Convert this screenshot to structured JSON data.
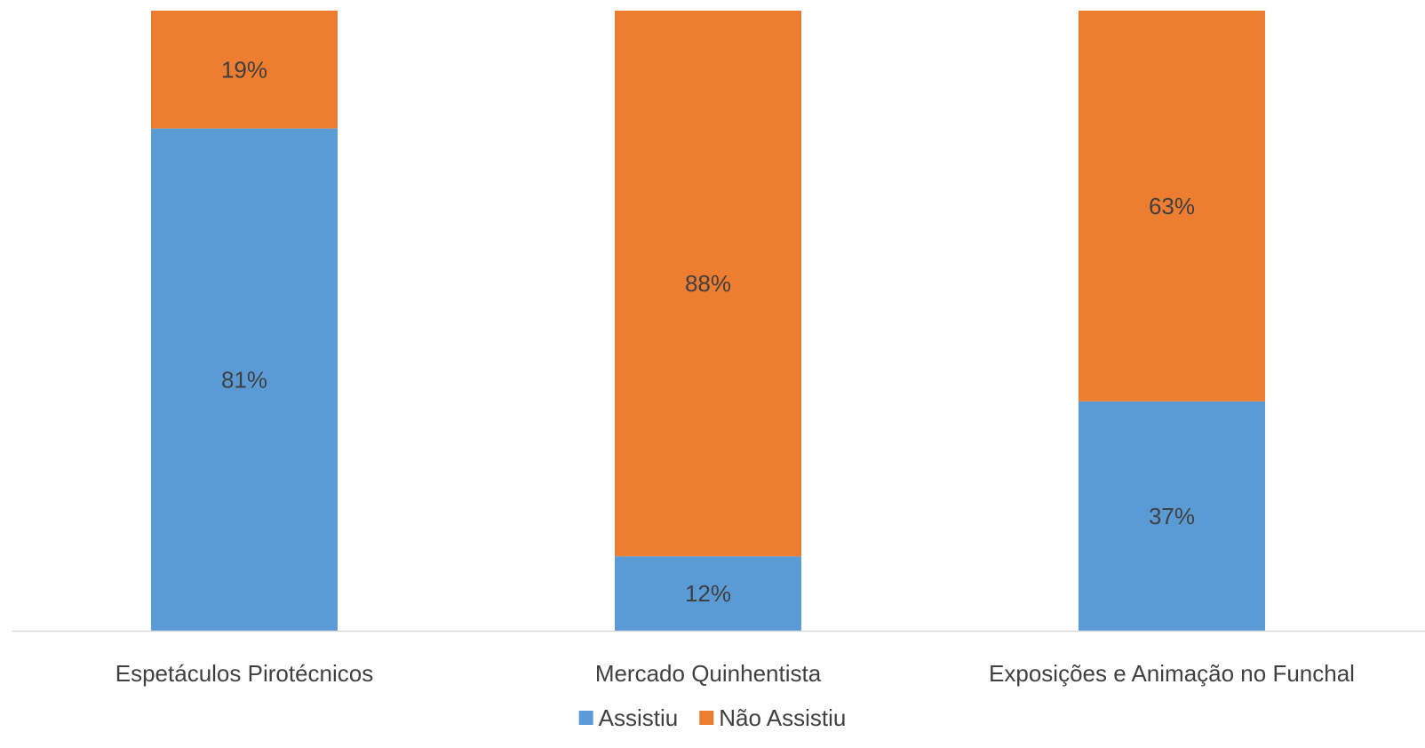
{
  "chart_data": {
    "type": "bar",
    "stacked": true,
    "percent_stacked": true,
    "categories": [
      "Espetáculos Pirotécnicos",
      "Mercado Quinhentista",
      "Exposições e Animação no Funchal"
    ],
    "series": [
      {
        "name": "Assistiu",
        "values": [
          81,
          12,
          37
        ],
        "labels": [
          "81%",
          "12%",
          "37%"
        ],
        "color": "#5B9BD5"
      },
      {
        "name": "Não Assistiu",
        "values": [
          19,
          88,
          63
        ],
        "labels": [
          "19%",
          "88%",
          "63%"
        ],
        "color": "#ED7D31"
      }
    ],
    "title": "",
    "xlabel": "",
    "ylabel": "",
    "ylim": [
      0,
      100
    ],
    "grid": false,
    "legend_position": "bottom",
    "axis_color": "#D9D9D9"
  }
}
